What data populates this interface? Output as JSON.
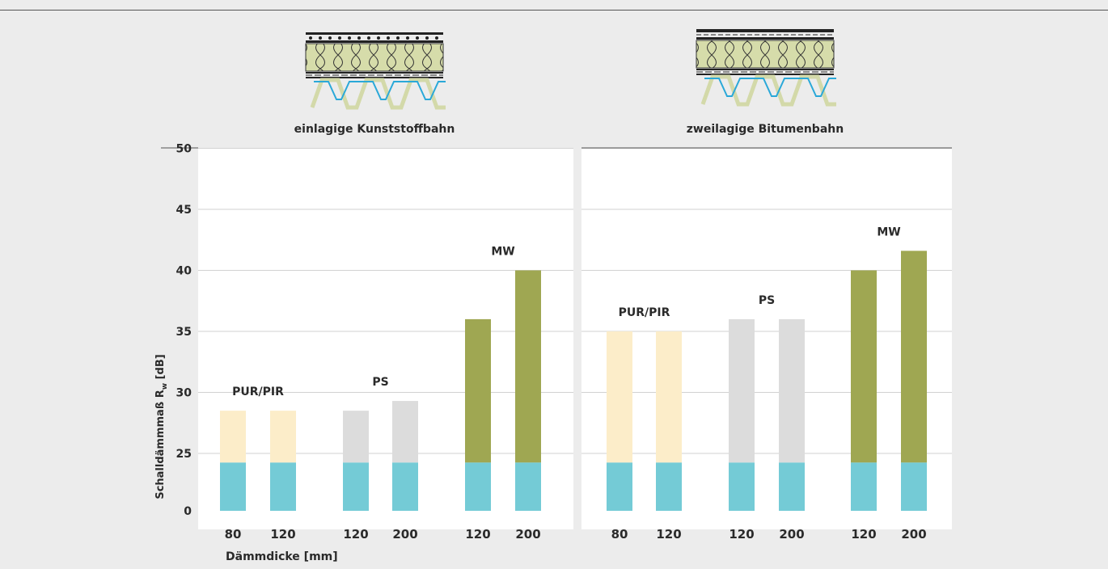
{
  "chart_data": {
    "type": "bar",
    "ylabel": "Schalldämmmaß R",
    "ylabel_sub": "w",
    "ylabel_unit": " [dB]",
    "xlabel": "Dämmdicke [mm]",
    "y_ticks": [
      "50",
      "45",
      "40",
      "35",
      "30",
      "25",
      "0"
    ],
    "base_value": 21,
    "colors": {
      "base": "#74cbd6",
      "PUR/PIR": "#fcedc9",
      "PS": "#dcdcdc",
      "MW": "#9fa752",
      "grid": "#d2d2d2",
      "panel": "#ffffff"
    },
    "panels": [
      {
        "title": "einlagige Kunststoffbahn",
        "groups": [
          {
            "name": "PUR/PIR",
            "categories": [
              "80",
              "120"
            ],
            "values": [
              28.5,
              28.5
            ]
          },
          {
            "name": "PS",
            "categories": [
              "120",
              "200"
            ],
            "values": [
              28.5,
              29.3
            ]
          },
          {
            "name": "MW",
            "categories": [
              "120",
              "200"
            ],
            "values": [
              36,
              40
            ]
          }
        ]
      },
      {
        "title": "zweilagige Bitumenbahn",
        "groups": [
          {
            "name": "PUR/PIR",
            "categories": [
              "80",
              "120"
            ],
            "values": [
              35,
              35
            ]
          },
          {
            "name": "PS",
            "categories": [
              "120",
              "200"
            ],
            "values": [
              36,
              36
            ]
          },
          {
            "name": "MW",
            "categories": [
              "120",
              "200"
            ],
            "values": [
              40,
              41.6
            ]
          }
        ]
      }
    ]
  }
}
